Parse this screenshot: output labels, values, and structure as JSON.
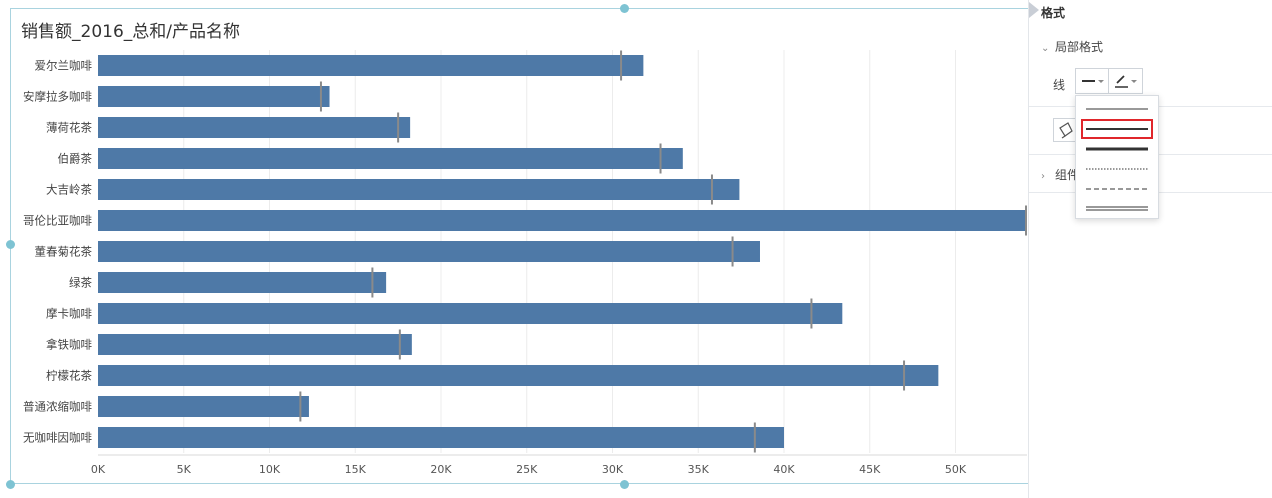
{
  "chart_data": {
    "type": "bar",
    "orientation": "horizontal",
    "title": "销售额_2016_总和/产品名称",
    "categories": [
      "爱尔兰咖啡",
      "安摩拉多咖啡",
      "薄荷花茶",
      "伯爵茶",
      "大吉岭茶",
      "哥伦比亚咖啡",
      "董春菊花茶",
      "绿茶",
      "摩卡咖啡",
      "拿铁咖啡",
      "柠檬花茶",
      "普通浓缩咖啡",
      "无咖啡因咖啡"
    ],
    "values": [
      31800,
      13500,
      18200,
      34100,
      37400,
      54500,
      38600,
      16800,
      43400,
      18300,
      49000,
      12300,
      40000
    ],
    "reference_marks": [
      30500,
      13000,
      17500,
      32800,
      35800,
      54500,
      37000,
      16000,
      41600,
      17600,
      47000,
      11800,
      38300
    ],
    "xlim": [
      0,
      54000
    ],
    "xticks": [
      0,
      5000,
      10000,
      15000,
      20000,
      25000,
      30000,
      35000,
      40000,
      45000,
      50000
    ],
    "xtick_labels": [
      "0K",
      "5K",
      "10K",
      "15K",
      "20K",
      "25K",
      "30K",
      "35K",
      "40K",
      "45K",
      "50K"
    ],
    "grid": true,
    "bar_color": "#4e79a7"
  },
  "format_pane": {
    "title": "格式",
    "local_format_label": "局部格式",
    "line_label": "线",
    "component_label": "组件",
    "line_style_options": [
      "thin",
      "medium",
      "thick",
      "dotted",
      "dashed",
      "double"
    ],
    "selected_line_style": "medium"
  }
}
